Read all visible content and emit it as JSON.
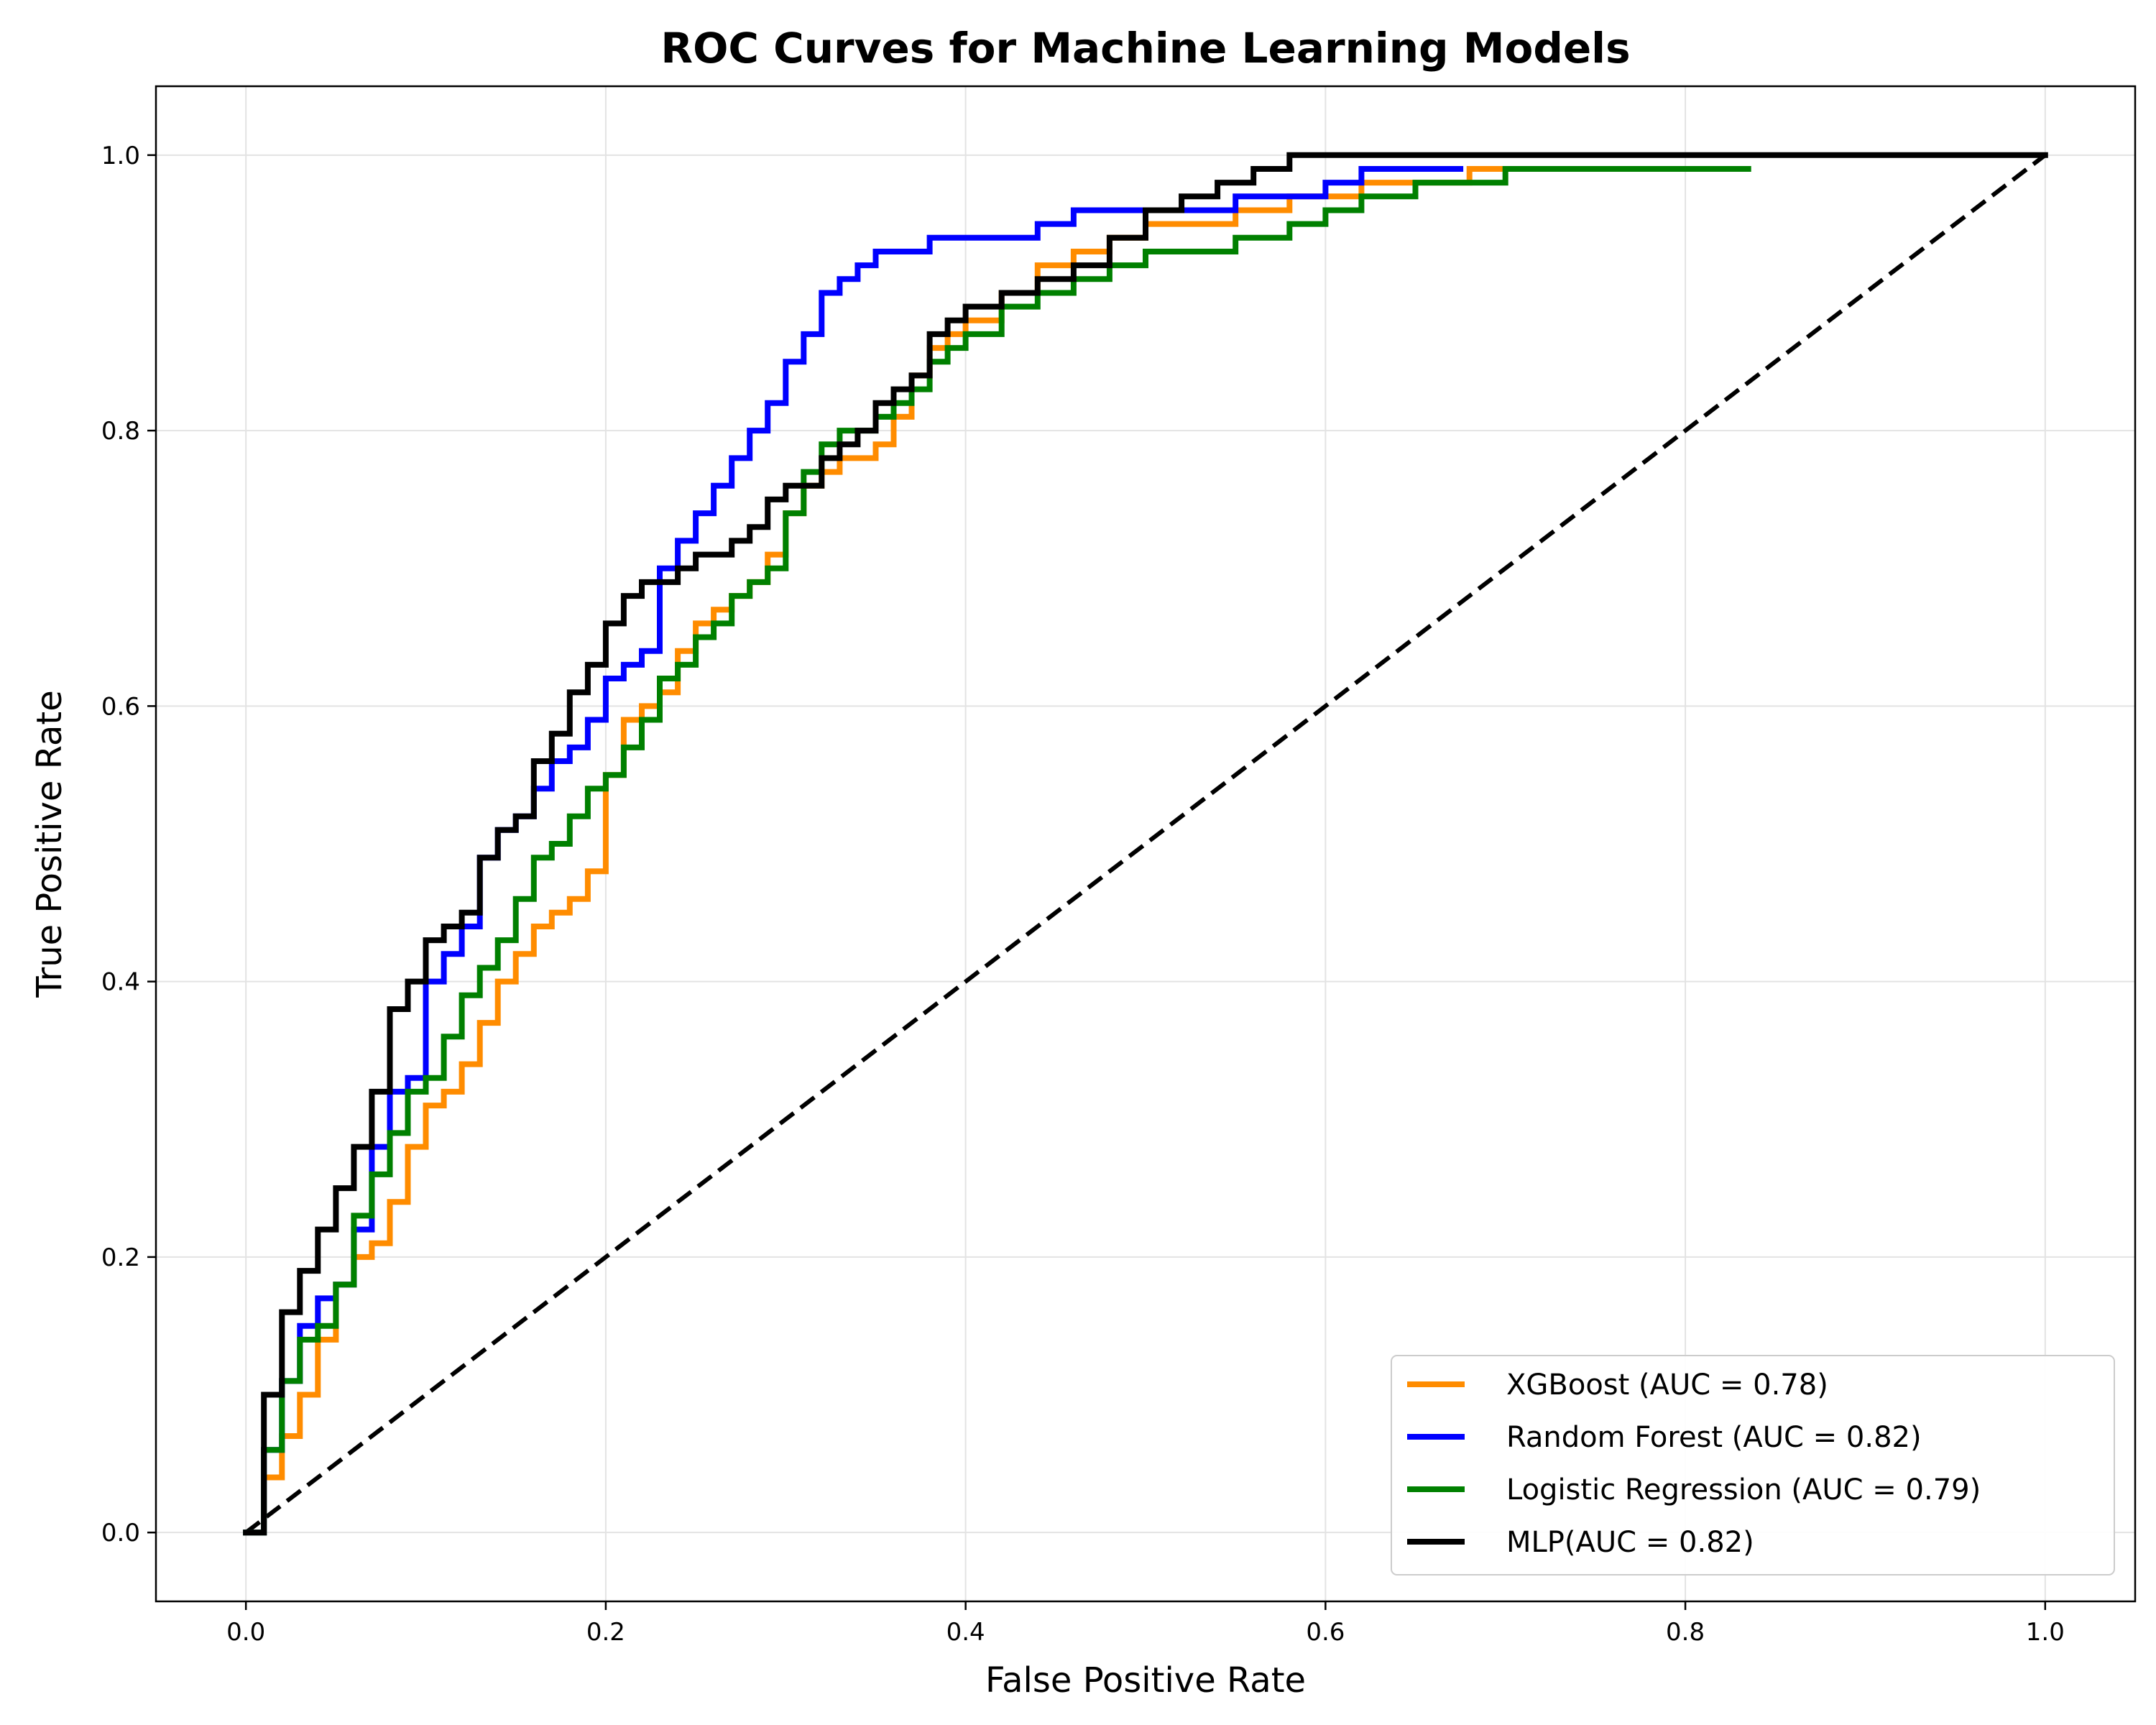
{
  "chart_data": {
    "type": "line",
    "title": "ROC Curves for Machine Learning Models",
    "xlabel": "False Positive Rate",
    "ylabel": "True Positive Rate",
    "xlim": [
      -0.05,
      1.05
    ],
    "ylim": [
      -0.05,
      1.05
    ],
    "xticks": [
      "0.0",
      "0.2",
      "0.4",
      "0.6",
      "0.8",
      "1.0"
    ],
    "yticks": [
      "0.0",
      "0.2",
      "0.4",
      "0.6",
      "0.8",
      "1.0"
    ],
    "grid": true,
    "legend_position": "lower-right",
    "series": [
      {
        "name": "XGBoost (AUC = 0.78)",
        "color": "#ff8c00",
        "x": [
          0,
          0.01,
          0.02,
          0.03,
          0.04,
          0.05,
          0.06,
          0.07,
          0.08,
          0.09,
          0.1,
          0.11,
          0.12,
          0.13,
          0.14,
          0.15,
          0.16,
          0.17,
          0.18,
          0.19,
          0.2,
          0.21,
          0.22,
          0.23,
          0.24,
          0.25,
          0.26,
          0.27,
          0.28,
          0.29,
          0.3,
          0.31,
          0.32,
          0.33,
          0.34,
          0.35,
          0.36,
          0.37,
          0.38,
          0.39,
          0.4,
          0.42,
          0.44,
          0.46,
          0.48,
          0.5,
          0.52,
          0.55,
          0.58,
          0.6,
          0.62,
          0.65,
          0.68,
          0.71
        ],
        "y": [
          0,
          0.04,
          0.07,
          0.1,
          0.14,
          0.18,
          0.2,
          0.21,
          0.24,
          0.28,
          0.31,
          0.32,
          0.34,
          0.37,
          0.4,
          0.42,
          0.44,
          0.45,
          0.46,
          0.48,
          0.55,
          0.59,
          0.6,
          0.61,
          0.64,
          0.66,
          0.67,
          0.68,
          0.69,
          0.71,
          0.74,
          0.76,
          0.77,
          0.78,
          0.78,
          0.79,
          0.81,
          0.84,
          0.86,
          0.87,
          0.88,
          0.9,
          0.92,
          0.93,
          0.94,
          0.95,
          0.95,
          0.96,
          0.97,
          0.97,
          0.98,
          0.98,
          0.99,
          0.99
        ]
      },
      {
        "name": "Random Forest (AUC = 0.82)",
        "color": "#0000ff",
        "x": [
          0,
          0.01,
          0.02,
          0.03,
          0.04,
          0.05,
          0.06,
          0.07,
          0.08,
          0.09,
          0.1,
          0.11,
          0.12,
          0.13,
          0.14,
          0.15,
          0.16,
          0.17,
          0.18,
          0.19,
          0.2,
          0.21,
          0.22,
          0.23,
          0.24,
          0.25,
          0.26,
          0.27,
          0.28,
          0.29,
          0.3,
          0.31,
          0.32,
          0.33,
          0.34,
          0.35,
          0.36,
          0.38,
          0.4,
          0.42,
          0.44,
          0.46,
          0.48,
          0.5,
          0.52,
          0.55,
          0.58,
          0.6,
          0.62,
          0.65,
          0.675
        ],
        "y": [
          0,
          0.06,
          0.11,
          0.15,
          0.17,
          0.18,
          0.22,
          0.28,
          0.32,
          0.33,
          0.4,
          0.42,
          0.44,
          0.49,
          0.51,
          0.52,
          0.54,
          0.56,
          0.57,
          0.59,
          0.62,
          0.63,
          0.64,
          0.7,
          0.72,
          0.74,
          0.76,
          0.78,
          0.8,
          0.82,
          0.85,
          0.87,
          0.9,
          0.91,
          0.92,
          0.93,
          0.93,
          0.94,
          0.94,
          0.94,
          0.95,
          0.96,
          0.96,
          0.96,
          0.96,
          0.97,
          0.97,
          0.98,
          0.99,
          0.99,
          0.99
        ]
      },
      {
        "name": "Logistic Regression (AUC = 0.79)",
        "color": "#008000",
        "x": [
          0,
          0.01,
          0.02,
          0.03,
          0.04,
          0.05,
          0.06,
          0.07,
          0.08,
          0.09,
          0.1,
          0.11,
          0.12,
          0.13,
          0.14,
          0.15,
          0.16,
          0.17,
          0.18,
          0.19,
          0.2,
          0.21,
          0.22,
          0.23,
          0.24,
          0.25,
          0.26,
          0.27,
          0.28,
          0.29,
          0.3,
          0.31,
          0.32,
          0.33,
          0.34,
          0.35,
          0.36,
          0.37,
          0.38,
          0.39,
          0.4,
          0.42,
          0.44,
          0.46,
          0.48,
          0.5,
          0.52,
          0.55,
          0.58,
          0.6,
          0.62,
          0.65,
          0.7,
          0.75,
          0.8,
          0.835
        ],
        "y": [
          0,
          0.06,
          0.11,
          0.14,
          0.15,
          0.18,
          0.23,
          0.26,
          0.29,
          0.32,
          0.33,
          0.36,
          0.39,
          0.41,
          0.43,
          0.46,
          0.49,
          0.5,
          0.52,
          0.54,
          0.55,
          0.57,
          0.59,
          0.62,
          0.63,
          0.65,
          0.66,
          0.68,
          0.69,
          0.7,
          0.74,
          0.77,
          0.79,
          0.8,
          0.8,
          0.81,
          0.82,
          0.83,
          0.85,
          0.86,
          0.87,
          0.89,
          0.9,
          0.91,
          0.92,
          0.93,
          0.93,
          0.94,
          0.95,
          0.96,
          0.97,
          0.98,
          0.99,
          0.99,
          0.99,
          0.99
        ]
      },
      {
        "name": "MLP(AUC = 0.82)",
        "color": "#000000",
        "x": [
          0,
          0.01,
          0.02,
          0.03,
          0.04,
          0.05,
          0.06,
          0.07,
          0.08,
          0.09,
          0.1,
          0.11,
          0.12,
          0.13,
          0.14,
          0.15,
          0.16,
          0.17,
          0.18,
          0.19,
          0.2,
          0.21,
          0.22,
          0.23,
          0.24,
          0.25,
          0.26,
          0.27,
          0.28,
          0.29,
          0.3,
          0.31,
          0.32,
          0.33,
          0.34,
          0.35,
          0.36,
          0.37,
          0.38,
          0.39,
          0.4,
          0.42,
          0.44,
          0.46,
          0.48,
          0.5,
          0.52,
          0.54,
          0.56,
          0.58,
          0.6,
          0.62,
          0.65,
          0.7,
          0.8,
          1.0
        ],
        "y": [
          0,
          0.1,
          0.16,
          0.19,
          0.22,
          0.25,
          0.28,
          0.32,
          0.38,
          0.4,
          0.43,
          0.44,
          0.45,
          0.49,
          0.51,
          0.52,
          0.56,
          0.58,
          0.61,
          0.63,
          0.66,
          0.68,
          0.69,
          0.69,
          0.7,
          0.71,
          0.71,
          0.72,
          0.73,
          0.75,
          0.76,
          0.76,
          0.78,
          0.79,
          0.8,
          0.82,
          0.83,
          0.84,
          0.87,
          0.88,
          0.89,
          0.9,
          0.91,
          0.92,
          0.94,
          0.96,
          0.97,
          0.98,
          0.99,
          1.0,
          1.0,
          1.0,
          1.0,
          1.0,
          1.0,
          1.0
        ]
      }
    ],
    "reference_line": {
      "x": [
        0,
        1
      ],
      "y": [
        0,
        1
      ],
      "style": "dashed",
      "color": "#000000"
    }
  }
}
